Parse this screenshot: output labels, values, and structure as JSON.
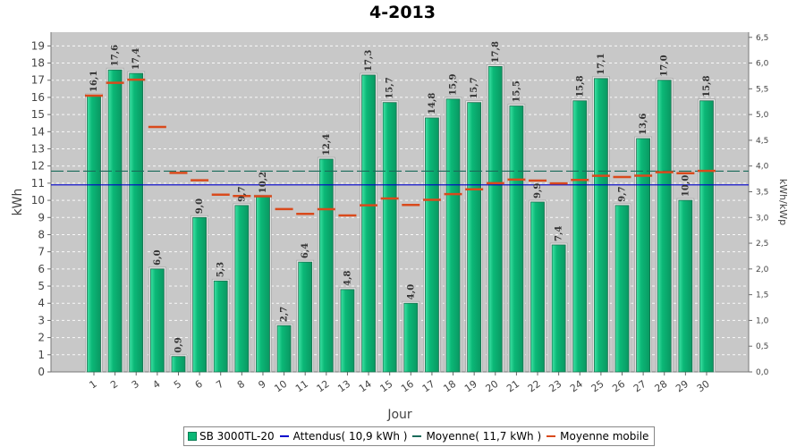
{
  "chart_data": {
    "type": "bar",
    "title": "4-2013",
    "xlabel": "Jour",
    "ylabel": "kWh",
    "y2label": "kWh/kWp",
    "categories": [
      "1",
      "2",
      "3",
      "4",
      "5",
      "6",
      "7",
      "8",
      "9",
      "10",
      "11",
      "12",
      "13",
      "14",
      "15",
      "16",
      "17",
      "18",
      "19",
      "20",
      "21",
      "22",
      "23",
      "24",
      "25",
      "26",
      "27",
      "28",
      "29",
      "30"
    ],
    "values": [
      16.1,
      17.6,
      17.4,
      6.0,
      0.9,
      9.0,
      5.3,
      9.7,
      10.2,
      2.7,
      6.4,
      12.4,
      4.8,
      17.3,
      15.7,
      4.0,
      14.8,
      15.9,
      15.7,
      17.8,
      15.5,
      9.9,
      7.4,
      15.8,
      17.1,
      9.7,
      13.6,
      17.0,
      10.0,
      15.8
    ],
    "value_labels": [
      "16,1",
      "17,6",
      "17,4",
      "6,0",
      "0,9",
      "9,0",
      "5,3",
      "9,7",
      "10,2",
      "2,7",
      "6,4",
      "12,4",
      "4,8",
      "17,3",
      "15,7",
      "4,0",
      "14,8",
      "15,9",
      "15,7",
      "17,8",
      "15,5",
      "9,9",
      "7,4",
      "15,8",
      "17,1",
      "9,7",
      "13,6",
      "17,0",
      "10,0",
      "15,8"
    ],
    "moving_average": [
      16.1,
      16.85,
      17.03,
      14.28,
      11.6,
      11.17,
      10.33,
      10.25,
      10.24,
      9.49,
      9.21,
      9.48,
      9.12,
      9.71,
      10.11,
      9.73,
      10.03,
      10.36,
      10.64,
      11.0,
      11.21,
      11.15,
      10.99,
      11.19,
      11.43,
      11.36,
      11.44,
      11.64,
      11.58,
      11.72
    ],
    "expected": 10.9,
    "average": 11.7,
    "ylim": [
      0,
      19.8
    ],
    "y_ticks": [
      "0",
      "1",
      "2",
      "3",
      "4",
      "5",
      "6",
      "7",
      "8",
      "9",
      "10",
      "11",
      "12",
      "13",
      "14",
      "15",
      "16",
      "17",
      "18",
      "19"
    ],
    "y2lim": [
      0,
      6.6
    ],
    "y2_ticks": [
      "0,0",
      "0,5",
      "1,0",
      "1,5",
      "2,0",
      "2,5",
      "3,0",
      "3,5",
      "4,0",
      "4,5",
      "5,0",
      "5,5",
      "6,0",
      "6,5"
    ],
    "grid": true,
    "legend_position": "bottom",
    "colors": {
      "bar_fill_light": "#3fe3a5",
      "bar_fill": "#0bb877",
      "bar_fill_dark": "#0a9862",
      "bar_edge": "#1d6f4f",
      "bar_shadow": "#e8e8e8",
      "plot_bg": "#c8c8c8",
      "expected_line": "#0000cc",
      "average_line": "#1a6b5a",
      "moving_average": "#d94a1c"
    },
    "legend": [
      {
        "label": "SB 3000TL-20",
        "kind": "box",
        "color": "#0bb877"
      },
      {
        "label": "Attendus( 10,9 kWh )",
        "kind": "line",
        "color": "#0000cc"
      },
      {
        "label": "Moyenne( 11,7 kWh )",
        "kind": "line",
        "color": "#1a6b5a"
      },
      {
        "label": "Moyenne mobile",
        "kind": "line",
        "color": "#d94a1c"
      }
    ]
  }
}
